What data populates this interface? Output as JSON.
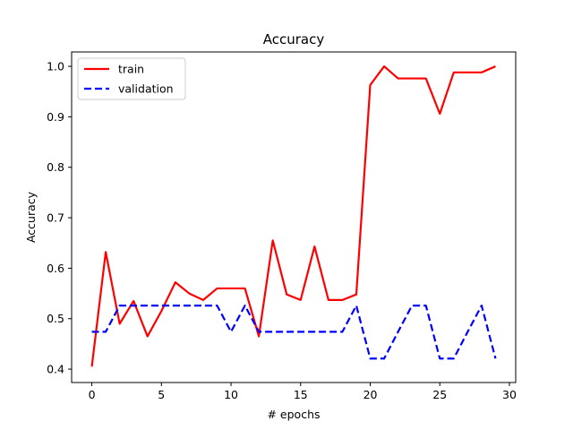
{
  "chart_data": {
    "type": "line",
    "title": "Accuracy",
    "xlabel": "# epochs",
    "ylabel": "Accuracy",
    "xlim": [
      -1.45,
      30.45
    ],
    "ylim": [
      0.3735,
      1.0285
    ],
    "xticks": [
      0,
      5,
      10,
      15,
      20,
      25,
      30
    ],
    "yticks": [
      0.4,
      0.5,
      0.6,
      0.7,
      0.8,
      0.9,
      1.0
    ],
    "xtick_labels": [
      "0",
      "5",
      "10",
      "15",
      "20",
      "25",
      "30"
    ],
    "ytick_labels": [
      "0.4",
      "0.5",
      "0.6",
      "0.7",
      "0.8",
      "0.9",
      "1.0"
    ],
    "grid": false,
    "legend_position": "top-left",
    "x": [
      0,
      1,
      2,
      3,
      4,
      5,
      6,
      7,
      8,
      9,
      10,
      11,
      12,
      13,
      14,
      15,
      16,
      17,
      18,
      19,
      20,
      21,
      22,
      23,
      24,
      25,
      26,
      27,
      28,
      29
    ],
    "series": [
      {
        "name": "train",
        "color": "#ff0000",
        "style": "solid",
        "values": [
          0.405,
          0.632,
          0.49,
          0.535,
          0.465,
          0.515,
          0.572,
          0.55,
          0.537,
          0.56,
          0.56,
          0.56,
          0.465,
          0.655,
          0.548,
          0.537,
          0.643,
          0.537,
          0.537,
          0.548,
          0.963,
          1.0,
          0.976,
          0.976,
          0.976,
          0.906,
          0.988,
          0.988,
          0.988,
          1.0
        ]
      },
      {
        "name": "validation",
        "color": "#0000ff",
        "style": "dashed",
        "values": [
          0.474,
          0.474,
          0.526,
          0.526,
          0.526,
          0.526,
          0.526,
          0.526,
          0.526,
          0.526,
          0.474,
          0.526,
          0.474,
          0.474,
          0.474,
          0.474,
          0.474,
          0.474,
          0.474,
          0.526,
          0.421,
          0.421,
          0.474,
          0.526,
          0.526,
          0.421,
          0.421,
          0.474,
          0.526,
          0.421
        ]
      }
    ]
  }
}
